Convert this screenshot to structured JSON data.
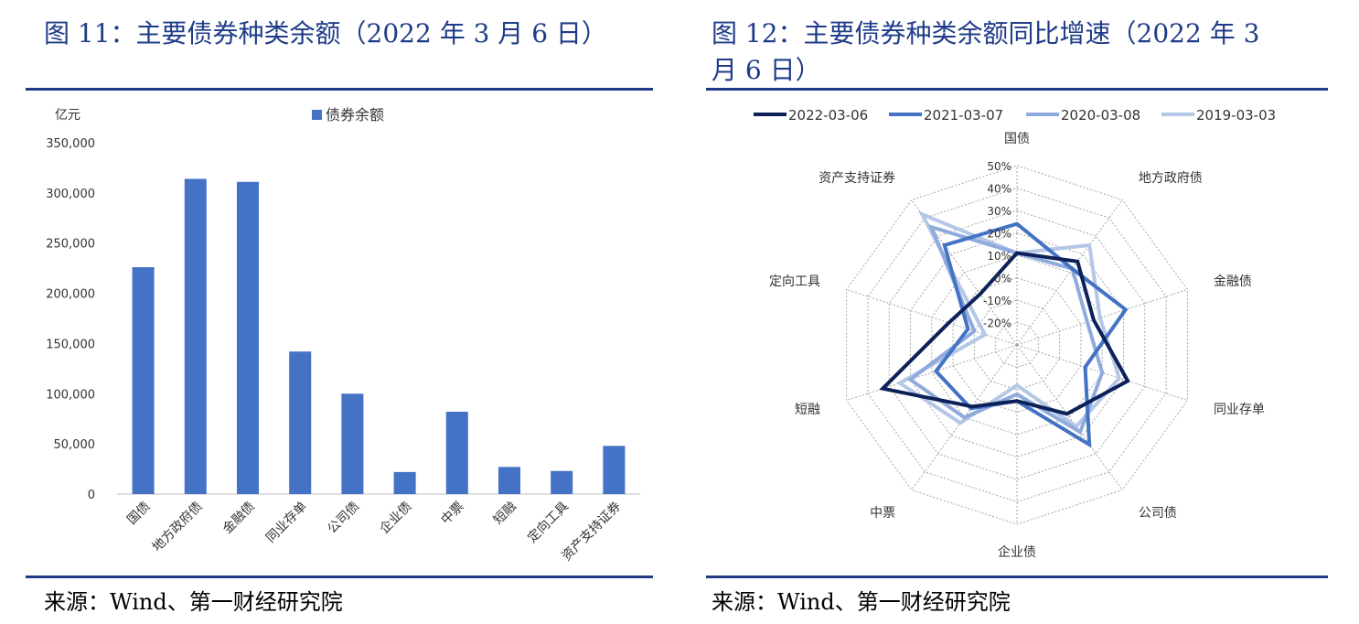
{
  "left": {
    "title": "图 11：主要债券种类余额（2022 年 3 月 6 日）",
    "source": "来源：Wind、第一财经研究院"
  },
  "right": {
    "title_line1": "图 12：主要债券种类余额同比增速（2022 年 3",
    "title_line2": "月 6 日）",
    "source": "来源：Wind、第一财经研究院"
  },
  "chart_data": [
    {
      "type": "bar",
      "unit_label": "亿元",
      "legend": "债券余额",
      "categories": [
        "国债",
        "地方政府债",
        "金融债",
        "同业存单",
        "公司债",
        "企业债",
        "中票",
        "短融",
        "定向工具",
        "资产支持证券"
      ],
      "values": [
        226000,
        314000,
        311000,
        142000,
        100000,
        22000,
        82000,
        27000,
        23000,
        48000
      ],
      "ylim": [
        0,
        350000
      ],
      "yticks": [
        0,
        50000,
        100000,
        150000,
        200000,
        250000,
        300000,
        350000
      ],
      "ytick_labels": [
        "0",
        "50,000",
        "100,000",
        "150,000",
        "200,000",
        "250,000",
        "300,000",
        "350,000"
      ],
      "color": "#4472c4"
    },
    {
      "type": "radar",
      "categories": [
        "国债",
        "地方政府债",
        "金融债",
        "同业存单",
        "公司债",
        "企业债",
        "中票",
        "短融",
        "定向工具",
        "资产支持证券"
      ],
      "rlim": [
        -30,
        50
      ],
      "rticks": [
        -20,
        -10,
        0,
        10,
        20,
        30,
        40,
        50
      ],
      "rtick_labels": [
        "-20%",
        "-10%",
        "0%",
        "10%",
        "20%",
        "30%",
        "40%",
        "50%"
      ],
      "series": [
        {
          "name": "2022-03-06",
          "color": "#0d2159",
          "values": [
            11,
            16,
            6,
            22,
            8,
            -5,
            4,
            33,
            2,
            -2
          ]
        },
        {
          "name": "2021-03-07",
          "color": "#4472c4",
          "values": [
            24,
            12,
            21,
            2,
            25,
            -5,
            5,
            8,
            -7,
            25
          ]
        },
        {
          "name": "2020-03-08",
          "color": "#8faadc",
          "values": [
            11,
            12,
            3,
            10,
            18,
            -8,
            10,
            20,
            -10,
            35
          ]
        },
        {
          "name": "2019-03-03",
          "color": "#b4c7e7",
          "values": [
            11,
            25,
            9,
            18,
            15,
            -12,
            13,
            25,
            -15,
            42
          ]
        }
      ]
    }
  ]
}
